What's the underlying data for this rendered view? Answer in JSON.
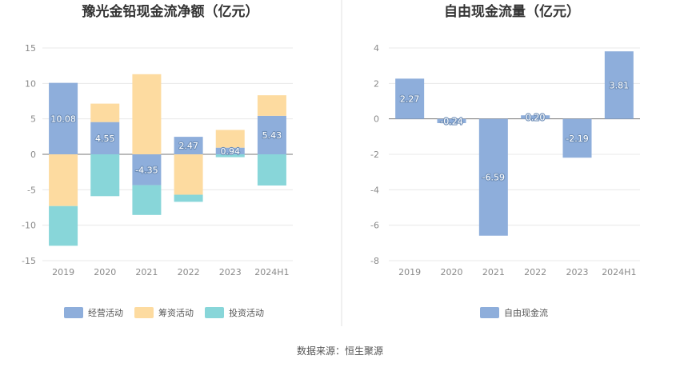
{
  "source": "数据来源：恒生聚源",
  "colors": {
    "operating": "#8eaedb",
    "financing": "#fddba0",
    "investing": "#88d6d9",
    "fcf": "#8eaedb",
    "axis": "#bbbbbb",
    "grid": "#e8e8e8",
    "divider": "#e0e0e0"
  },
  "chart_data": [
    {
      "type": "bar",
      "stacked": true,
      "title": "豫光金铅现金流净额（亿元）",
      "categories": [
        "2019",
        "2020",
        "2021",
        "2022",
        "2023",
        "2024H1"
      ],
      "ylim": [
        -15,
        15
      ],
      "yticks": [
        "15",
        "10",
        "5",
        "0",
        "-5",
        "-10",
        "-15"
      ],
      "ytick_values": [
        15,
        10,
        5,
        0,
        -5,
        -10,
        -15
      ],
      "grid": true,
      "legend_position": "bottom",
      "series": [
        {
          "name": "经营活动",
          "values": [
            10.08,
            4.55,
            -4.35,
            2.47,
            0.94,
            5.43
          ],
          "labels": [
            "10.08",
            "4.55",
            "-4.35",
            "2.47",
            "0.94",
            "5.43"
          ]
        },
        {
          "name": "筹资活动",
          "values": [
            -7.3,
            2.6,
            11.3,
            -5.7,
            2.5,
            2.9
          ]
        },
        {
          "name": "投资活动",
          "values": [
            -5.6,
            -5.9,
            -4.2,
            -1.0,
            -0.4,
            -4.4
          ]
        }
      ]
    },
    {
      "type": "bar",
      "title": "自由现金流量（亿元）",
      "categories": [
        "2019",
        "2020",
        "2021",
        "2022",
        "2023",
        "2024H1"
      ],
      "ylim": [
        -8,
        4
      ],
      "yticks": [
        "4",
        "2",
        "0",
        "-2",
        "-4",
        "-6",
        "-8"
      ],
      "ytick_values": [
        4,
        2,
        0,
        -2,
        -4,
        -6,
        -8
      ],
      "grid": true,
      "legend_position": "bottom",
      "series": [
        {
          "name": "自由现金流",
          "values": [
            2.27,
            -0.24,
            -6.59,
            0.2,
            -2.19,
            3.81
          ],
          "labels": [
            "2.27",
            "-0.24",
            "-6.59",
            "0.20",
            "-2.19",
            "3.81"
          ]
        }
      ]
    }
  ]
}
